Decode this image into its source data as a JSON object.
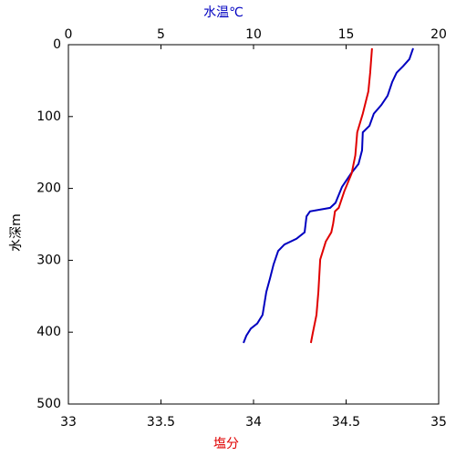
{
  "chart_data": {
    "type": "line",
    "xlabel": "塩分",
    "x2label": "水温℃",
    "ylabel": "水深m",
    "xlim": [
      33,
      35
    ],
    "xticks": [
      33,
      33.5,
      34,
      34.5,
      35
    ],
    "x2lim": [
      0,
      20
    ],
    "x2ticks": [
      0,
      5,
      10,
      15,
      20
    ],
    "ylim": [
      0,
      500
    ],
    "yticks": [
      0,
      100,
      200,
      300,
      400,
      500
    ],
    "y_inverted": true,
    "xlabel_color": "#e00000",
    "x2label_color": "#0000c0",
    "series": [
      {
        "axis": "x2",
        "color": "#0000c0",
        "x": [
          18.62,
          18.42,
          18.08,
          17.73,
          17.49,
          17.24,
          16.9,
          16.5,
          16.26,
          15.9,
          15.86,
          15.67,
          15.27,
          14.78,
          14.43,
          14.14,
          13.05,
          12.86,
          12.76,
          12.32,
          11.67,
          11.33,
          11.08,
          10.89,
          10.69,
          10.49,
          10.2,
          9.85,
          9.61,
          9.46
        ],
        "y": [
          5,
          20,
          30,
          39,
          52,
          71,
          84,
          96,
          113,
          122,
          147,
          166,
          179,
          198,
          220,
          227,
          232,
          239,
          261,
          270,
          278,
          287,
          306,
          325,
          344,
          376,
          388,
          395,
          405,
          415
        ]
      },
      {
        "color": "#e00000",
        "x": [
          34.64,
          34.63,
          34.62,
          34.59,
          34.56,
          34.55,
          34.53,
          34.49,
          34.46,
          34.44,
          34.43,
          34.42,
          34.39,
          34.36,
          34.35,
          34.34,
          34.32,
          34.31
        ],
        "y": [
          5,
          39,
          65,
          96,
          122,
          154,
          179,
          204,
          227,
          232,
          249,
          261,
          274,
          299,
          344,
          376,
          401,
          415
        ]
      }
    ]
  }
}
